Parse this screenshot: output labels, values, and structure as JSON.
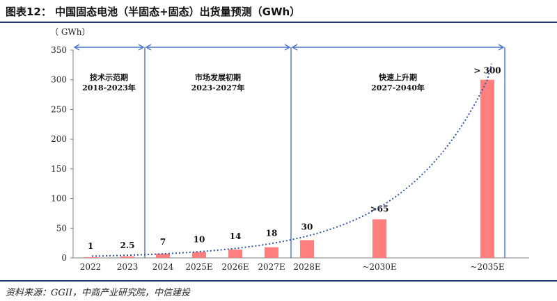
{
  "header": {
    "title": "图表12：  中国固态电池（半固态+固态）出货量预测（GWh）"
  },
  "footer": {
    "source": "资料来源：GGII，中商产业研究院，中信建投"
  },
  "chart_data": {
    "type": "bar",
    "title": "中国固态电池（半固态+固态）出货量预测（GWh）",
    "ylabel": "（ GWh）",
    "xlabel": "",
    "ylim": [
      0,
      350
    ],
    "yticks": [
      0,
      50,
      100,
      150,
      200,
      250,
      300,
      350
    ],
    "categories": [
      "2022",
      "2023",
      "2024",
      "2025E",
      "2026E",
      "2027E",
      "2028E",
      "~2030E",
      "~2035E"
    ],
    "values": [
      1,
      2.5,
      7,
      10,
      14,
      18,
      30,
      65,
      300
    ],
    "data_labels": [
      "1",
      "2.5",
      "7",
      "10",
      "14",
      "18",
      "30",
      ">65",
      "> 300"
    ],
    "bar_color": "#ff7f7f",
    "trend_line": {
      "style": "dotted",
      "color": "#2f55a4"
    },
    "grid": false,
    "phases": [
      {
        "name": "技术示范期",
        "period": "2018-2023年",
        "from_category": "2022",
        "to_category": "2023"
      },
      {
        "name": "市场发展初期",
        "period": "2023-2027年",
        "from_category": "2024",
        "to_category": "2027E"
      },
      {
        "name": "快速上升期",
        "period": "2027-2040年",
        "from_category": "2028E",
        "to_category": "~2035E"
      }
    ],
    "phase_color": "#4a73c9"
  }
}
